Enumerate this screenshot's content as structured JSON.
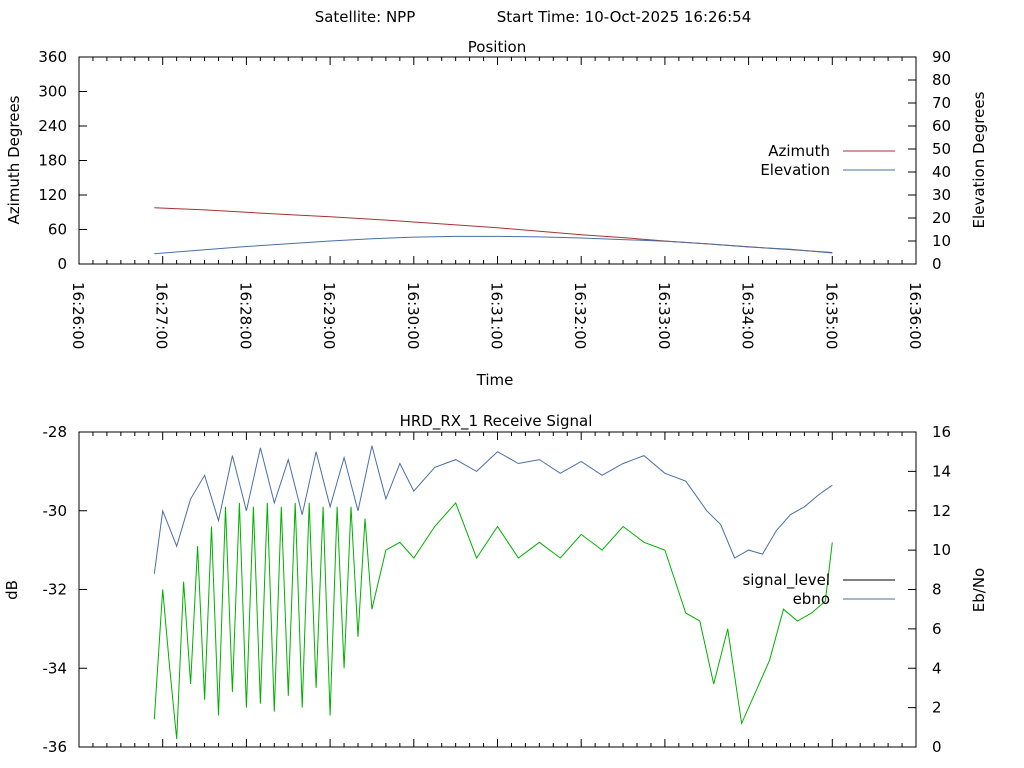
{
  "header": {
    "satellite_text": "Satellite: NPP",
    "start_time_text": "Start Time: 10-Oct-2025 16:26:54"
  },
  "chart_data": [
    {
      "type": "line",
      "title": "Position",
      "xlabel": "Time",
      "ylabel": "Azimuth Degrees",
      "y2label": "Elevation Degrees",
      "ylim": [
        0,
        360
      ],
      "y2lim": [
        0,
        90
      ],
      "yticks": [
        0,
        60,
        120,
        180,
        240,
        300,
        360
      ],
      "y2ticks": [
        0,
        10,
        20,
        30,
        40,
        50,
        60,
        70,
        80,
        90
      ],
      "xlim": [
        "16:26:00",
        "16:36:00"
      ],
      "xticks": [
        "16:26:00",
        "16:27:00",
        "16:28:00",
        "16:29:00",
        "16:30:00",
        "16:31:00",
        "16:32:00",
        "16:33:00",
        "16:34:00",
        "16:35:00",
        "16:36:00"
      ],
      "grid": false,
      "legend_position": "right",
      "series": [
        {
          "name": "Azimuth",
          "axis": "left",
          "color": "#a83232",
          "x": [
            "16:26:54",
            "16:27:30",
            "16:28:00",
            "16:28:30",
            "16:29:00",
            "16:29:30",
            "16:30:00",
            "16:30:30",
            "16:31:00",
            "16:31:30",
            "16:32:00",
            "16:32:30",
            "16:33:00",
            "16:33:30",
            "16:34:00",
            "16:34:30",
            "16:35:00"
          ],
          "values": [
            98,
            94,
            90,
            86,
            82,
            78,
            73,
            68,
            63,
            57,
            51,
            46,
            40,
            35,
            30,
            25,
            20
          ]
        },
        {
          "name": "Elevation",
          "axis": "right",
          "color": "#4a6fa5",
          "x": [
            "16:26:54",
            "16:27:30",
            "16:28:00",
            "16:28:30",
            "16:29:00",
            "16:29:30",
            "16:30:00",
            "16:30:30",
            "16:31:00",
            "16:31:30",
            "16:32:00",
            "16:32:30",
            "16:33:00",
            "16:33:30",
            "16:34:00",
            "16:34:30",
            "16:35:00"
          ],
          "values": [
            4.5,
            6.2,
            7.6,
            8.8,
            10.0,
            11.0,
            11.7,
            12.0,
            12.0,
            11.8,
            11.3,
            10.6,
            9.9,
            8.8,
            7.4,
            6.4,
            4.8
          ]
        }
      ]
    },
    {
      "type": "line",
      "title": "HRD_RX_1 Receive Signal",
      "xlabel": "",
      "ylabel": "dB",
      "y2label": "Eb/No",
      "ylim": [
        -36,
        -28
      ],
      "y2lim": [
        0,
        16
      ],
      "yticks": [
        -36,
        -34,
        -32,
        -30,
        -28
      ],
      "y2ticks": [
        0,
        2,
        4,
        6,
        8,
        10,
        12,
        14,
        16
      ],
      "xlim": [
        "16:26:00",
        "16:36:00"
      ],
      "grid": false,
      "legend_position": "right",
      "series": [
        {
          "name": "signal_level",
          "axis": "left",
          "color": "#000000",
          "legend_only": true,
          "values": []
        },
        {
          "name": "ebno",
          "axis": "right",
          "color": "#4a6fa5",
          "x": [
            "16:26:54",
            "16:27:00",
            "16:27:10",
            "16:27:20",
            "16:27:30",
            "16:27:40",
            "16:27:50",
            "16:28:00",
            "16:28:10",
            "16:28:20",
            "16:28:30",
            "16:28:40",
            "16:28:50",
            "16:29:00",
            "16:29:10",
            "16:29:20",
            "16:29:30",
            "16:29:40",
            "16:29:50",
            "16:30:00",
            "16:30:15",
            "16:30:30",
            "16:30:45",
            "16:31:00",
            "16:31:15",
            "16:31:30",
            "16:31:45",
            "16:32:00",
            "16:32:15",
            "16:32:30",
            "16:32:45",
            "16:33:00",
            "16:33:15",
            "16:33:30",
            "16:33:40",
            "16:33:50",
            "16:34:00",
            "16:34:10",
            "16:34:20",
            "16:34:30",
            "16:34:40",
            "16:34:50",
            "16:35:00"
          ],
          "values": [
            8.8,
            12.0,
            10.2,
            12.6,
            13.8,
            11.5,
            14.8,
            12.0,
            15.2,
            12.4,
            14.6,
            11.8,
            15.0,
            12.2,
            14.7,
            12.0,
            15.3,
            12.6,
            14.4,
            13.0,
            14.2,
            14.6,
            14.0,
            15.0,
            14.4,
            14.6,
            13.9,
            14.5,
            13.8,
            14.4,
            14.8,
            13.9,
            13.5,
            12.0,
            11.3,
            9.6,
            10.0,
            9.8,
            11.0,
            11.8,
            12.2,
            12.8,
            13.3
          ]
        },
        {
          "name": "",
          "axis": "left",
          "color": "#00b000",
          "x": [
            "16:26:54",
            "16:27:00",
            "16:27:05",
            "16:27:10",
            "16:27:15",
            "16:27:20",
            "16:27:25",
            "16:27:30",
            "16:27:35",
            "16:27:40",
            "16:27:45",
            "16:27:50",
            "16:27:55",
            "16:28:00",
            "16:28:05",
            "16:28:10",
            "16:28:15",
            "16:28:20",
            "16:28:25",
            "16:28:30",
            "16:28:35",
            "16:28:40",
            "16:28:45",
            "16:28:50",
            "16:28:55",
            "16:29:00",
            "16:29:05",
            "16:29:10",
            "16:29:15",
            "16:29:20",
            "16:29:25",
            "16:29:30",
            "16:29:40",
            "16:29:50",
            "16:30:00",
            "16:30:15",
            "16:30:30",
            "16:30:45",
            "16:31:00",
            "16:31:15",
            "16:31:30",
            "16:31:45",
            "16:32:00",
            "16:32:15",
            "16:32:30",
            "16:32:45",
            "16:33:00",
            "16:33:15",
            "16:33:25",
            "16:33:35",
            "16:33:45",
            "16:33:55",
            "16:34:05",
            "16:34:15",
            "16:34:25",
            "16:34:35",
            "16:34:45",
            "16:34:55",
            "16:35:00"
          ],
          "values": [
            -35.3,
            -32.0,
            -34.0,
            -35.8,
            -31.8,
            -34.4,
            -30.9,
            -34.8,
            -30.4,
            -35.2,
            -29.9,
            -34.6,
            -29.8,
            -35.0,
            -29.9,
            -34.9,
            -29.8,
            -35.1,
            -29.9,
            -34.7,
            -29.8,
            -35.0,
            -29.8,
            -34.5,
            -29.9,
            -35.2,
            -29.9,
            -34.0,
            -29.9,
            -33.2,
            -30.2,
            -32.5,
            -31.0,
            -30.8,
            -31.2,
            -30.4,
            -29.8,
            -31.2,
            -30.4,
            -31.2,
            -30.8,
            -31.2,
            -30.6,
            -31.0,
            -30.4,
            -30.8,
            -31.0,
            -32.6,
            -32.8,
            -34.4,
            -33.0,
            -35.4,
            -34.6,
            -33.8,
            -32.5,
            -32.8,
            -32.6,
            -32.3,
            -30.8
          ]
        }
      ]
    }
  ]
}
